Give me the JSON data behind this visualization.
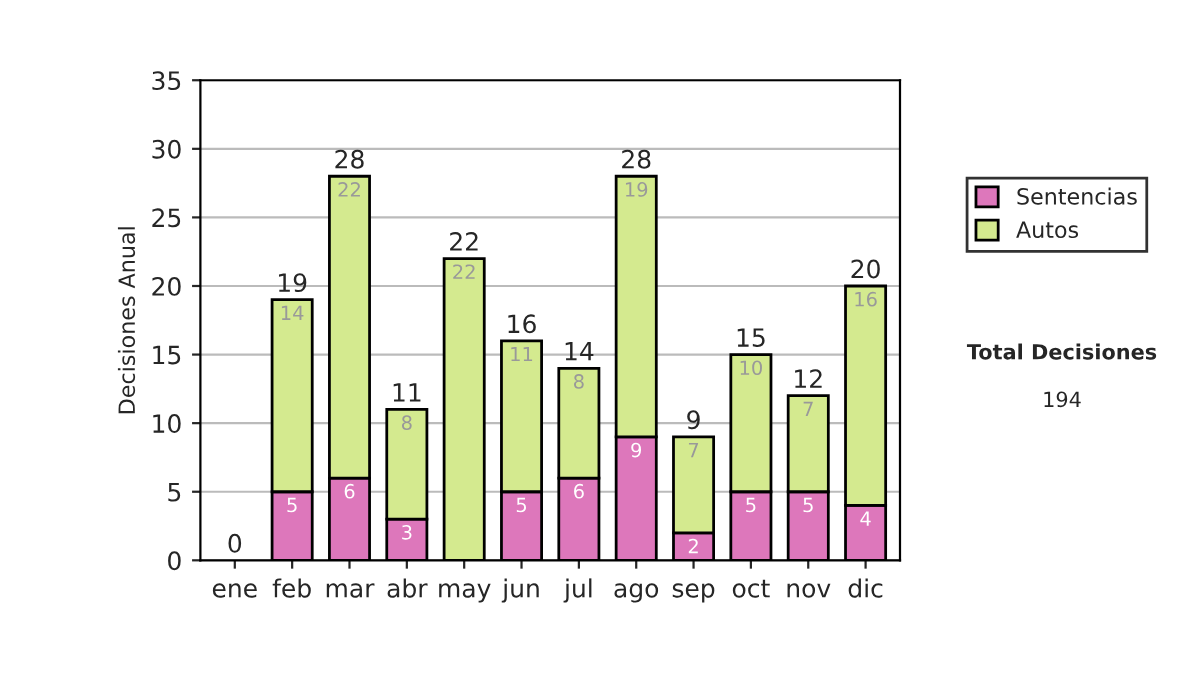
{
  "chart_data": {
    "type": "bar",
    "stacked": true,
    "ylabel": "Decisiones Anual",
    "categories": [
      "ene",
      "feb",
      "mar",
      "abr",
      "may",
      "jun",
      "jul",
      "ago",
      "sep",
      "oct",
      "nov",
      "dic"
    ],
    "series": [
      {
        "name": "Sentencias",
        "color": "#dd77bb",
        "values": [
          0,
          5,
          6,
          3,
          0,
          5,
          6,
          9,
          2,
          5,
          5,
          4
        ],
        "value_labels": [
          null,
          "5",
          "6",
          "3",
          null,
          "5",
          "6",
          "9",
          "2",
          "5",
          "5",
          "4"
        ]
      },
      {
        "name": "Autos",
        "color": "#d4ea8f",
        "values": [
          0,
          14,
          22,
          8,
          22,
          11,
          8,
          19,
          7,
          10,
          7,
          16
        ],
        "value_labels": [
          null,
          "14",
          "22",
          "8",
          "22",
          "11",
          "8",
          "19",
          "7",
          "10",
          "7",
          "16"
        ]
      }
    ],
    "totals": [
      "0",
      "19",
      "28",
      "11",
      "22",
      "16",
      "14",
      "28",
      "9",
      "15",
      "12",
      "20"
    ],
    "ylim": [
      0,
      35
    ],
    "yticks": [
      0,
      5,
      10,
      15,
      20,
      25,
      30,
      35
    ],
    "grid": "y",
    "legend": "right",
    "annotations": [
      "Total Decisiones",
      "194"
    ]
  }
}
